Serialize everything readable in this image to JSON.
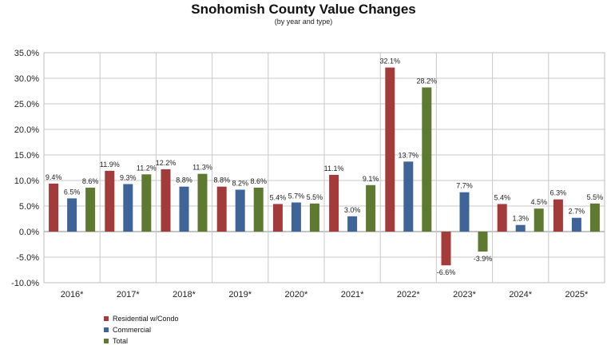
{
  "chart_data": {
    "type": "bar",
    "title": "Snohomish County Value Changes",
    "subtitle": "(by year and type)",
    "categories": [
      "2016*",
      "2017*",
      "2018*",
      "2019*",
      "2020*",
      "2021*",
      "2022*",
      "2023*",
      "2024*",
      "2025*"
    ],
    "series": [
      {
        "name": "Residential w/Condo",
        "color": "#a33b3b",
        "values": [
          9.4,
          11.9,
          12.2,
          8.8,
          5.4,
          11.1,
          32.1,
          -6.6,
          5.4,
          6.3
        ]
      },
      {
        "name": "Commercial",
        "color": "#3f6497",
        "values": [
          6.5,
          9.3,
          8.8,
          8.2,
          5.7,
          3.0,
          13.7,
          7.7,
          1.3,
          2.7
        ]
      },
      {
        "name": "Total",
        "color": "#5d7a30",
        "values": [
          8.6,
          11.2,
          11.3,
          8.6,
          5.5,
          9.1,
          28.2,
          -3.9,
          4.5,
          5.5
        ]
      }
    ],
    "ylim": [
      -10,
      35
    ],
    "yticks": [
      35,
      30,
      25,
      20,
      15,
      10,
      5,
      0,
      -5,
      -10
    ],
    "ytick_labels": [
      "35.0%",
      "30.0%",
      "25.0%",
      "20.0%",
      "15.0%",
      "10.0%",
      "5.0%",
      "0.0%",
      "-5.0%",
      "-10.0%"
    ],
    "data_labels": [
      [
        "9.4%",
        "11.9%",
        "12.2%",
        "8.8%",
        "5.4%",
        "11.1%",
        "32.1%",
        "-6.6%",
        "5.4%",
        "6.3%"
      ],
      [
        "6.5%",
        "9.3%",
        "8.8%",
        "8.2%",
        "5.7%",
        "3.0%",
        "13.7%",
        "7.7%",
        "1.3%",
        "2.7%"
      ],
      [
        "8.6%",
        "11.2%",
        "11.3%",
        "8.6%",
        "5.5%",
        "9.1%",
        "28.2%",
        "-3.9%",
        "4.5%",
        "5.5%"
      ]
    ],
    "grid": true,
    "legend": "bottom-left"
  }
}
